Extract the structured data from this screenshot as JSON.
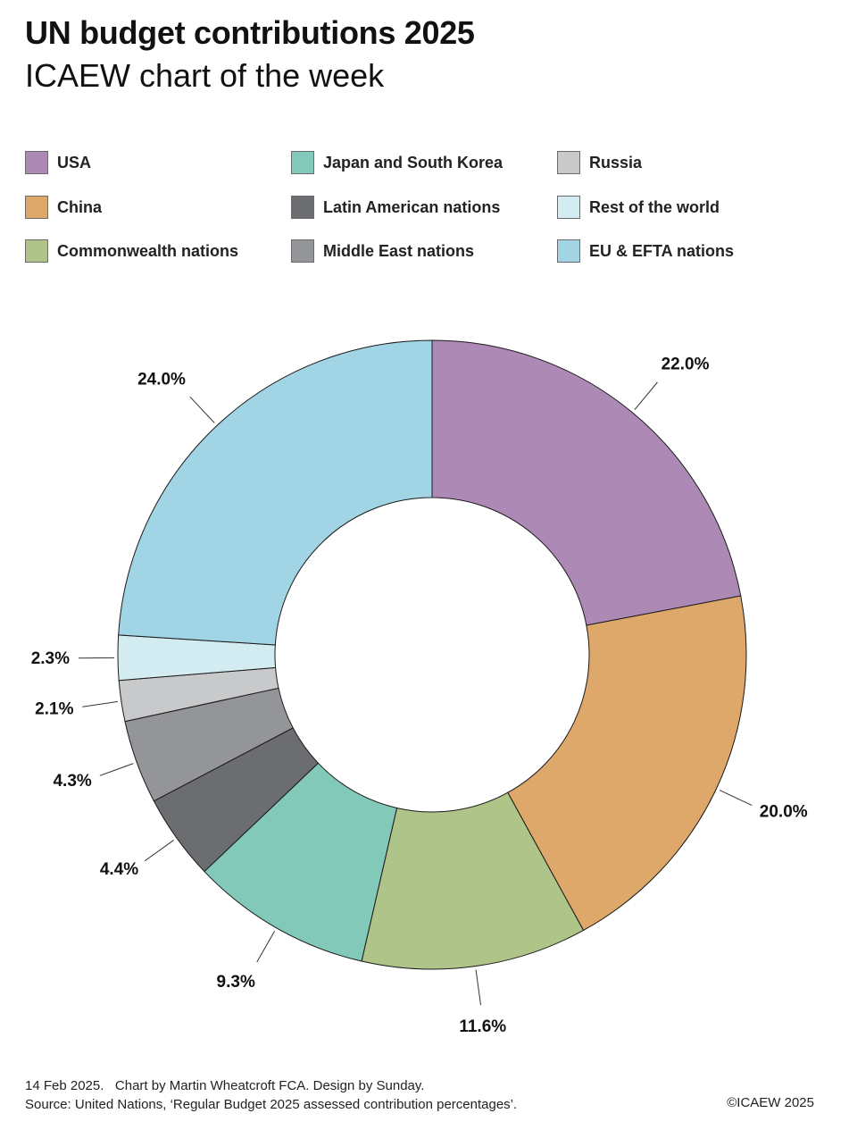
{
  "header": {
    "title": "UN budget contributions 2025",
    "subtitle": "ICAEW chart of the week"
  },
  "chart_data": {
    "type": "pie",
    "donut": true,
    "categories": [
      "USA",
      "China",
      "Commonwealth nations",
      "Japan and South Korea",
      "Latin American nations",
      "Middle East nations",
      "Russia",
      "Rest of the world",
      "EU & EFTA nations"
    ],
    "values": [
      22.0,
      20.0,
      11.6,
      9.3,
      4.4,
      4.3,
      2.1,
      2.3,
      24.0
    ],
    "value_labels": [
      "22.0%",
      "20.0%",
      "11.6%",
      "9.3%",
      "4.4%",
      "4.3%",
      "2.1%",
      "2.3%",
      "24.0%"
    ],
    "colors": [
      "#ad89b5",
      "#dea86b",
      "#aec489",
      "#82c9b9",
      "#6b6d70",
      "#939598",
      "#c8c9cb",
      "#d3ecf2",
      "#a1d4e5"
    ],
    "legend": "top"
  },
  "footer": {
    "line1": "14 Feb 2025.   Chart by Martin Wheatcroft FCA. Design by Sunday.",
    "line2": "Source: United Nations, ‘Regular Budget 2025 assessed contribution percentages’.",
    "copyright": "©ICAEW 2025"
  }
}
